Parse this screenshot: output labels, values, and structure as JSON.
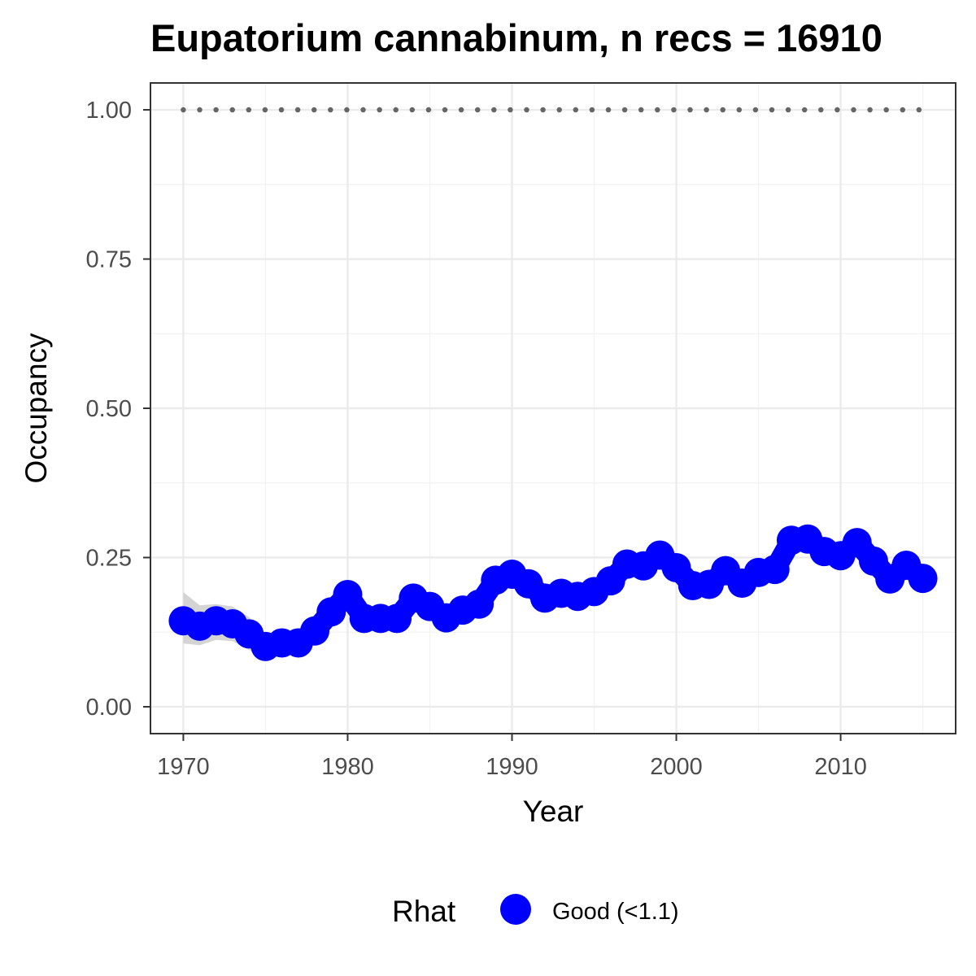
{
  "chart_data": {
    "type": "line",
    "title": "Eupatorium cannabinum, n recs = 16910",
    "xlabel": "Year",
    "ylabel": "Occupancy",
    "xlim": [
      1968,
      2017
    ],
    "ylim": [
      -0.045,
      1.045
    ],
    "x_ticks": [
      1970,
      1980,
      1990,
      2000,
      2010
    ],
    "y_ticks": [
      0,
      0.25,
      0.5,
      0.75,
      1.0
    ],
    "y_tick_labels": [
      "0.00",
      "0.25",
      "0.50",
      "0.75",
      "1.00"
    ],
    "grid": true,
    "legend_position": "bottom",
    "legend": {
      "title": "Rhat",
      "items": [
        {
          "label": "Good (<1.1)",
          "color": "#0000ff"
        }
      ]
    },
    "series": [
      {
        "x": [
          1970,
          1971,
          1972,
          1973,
          1974,
          1975,
          1976,
          1977,
          1978,
          1979,
          1980,
          1981,
          1982,
          1983,
          1984,
          1985,
          1986,
          1987,
          1988,
          1989,
          1990,
          1991,
          1992,
          1993,
          1994,
          1995,
          1996,
          1997,
          1998,
          1999,
          2000,
          2001,
          2002,
          2003,
          2004,
          2005,
          2006,
          2007,
          2008,
          2009,
          2010,
          2011,
          2012,
          2013,
          2014,
          2015
        ],
        "values": [
          0.144,
          0.135,
          0.144,
          0.139,
          0.122,
          0.101,
          0.107,
          0.107,
          0.127,
          0.159,
          0.188,
          0.148,
          0.148,
          0.148,
          0.182,
          0.168,
          0.149,
          0.162,
          0.172,
          0.212,
          0.222,
          0.206,
          0.182,
          0.19,
          0.185,
          0.193,
          0.211,
          0.239,
          0.236,
          0.254,
          0.233,
          0.203,
          0.205,
          0.228,
          0.207,
          0.225,
          0.23,
          0.279,
          0.281,
          0.26,
          0.253,
          0.275,
          0.244,
          0.214,
          0.237,
          0.215
        ],
        "lower": [
          0.106,
          0.103,
          0.112,
          0.11,
          0.095,
          0.082,
          0.089,
          0.09,
          0.11,
          0.142,
          0.168,
          0.134,
          0.134,
          0.135,
          0.166,
          0.152,
          0.137,
          0.149,
          0.158,
          0.197,
          0.208,
          0.193,
          0.17,
          0.178,
          0.174,
          0.181,
          0.198,
          0.225,
          0.222,
          0.24,
          0.22,
          0.19,
          0.193,
          0.215,
          0.195,
          0.212,
          0.217,
          0.264,
          0.267,
          0.246,
          0.24,
          0.261,
          0.231,
          0.2,
          0.222,
          0.2
        ],
        "upper": [
          0.192,
          0.17,
          0.172,
          0.168,
          0.15,
          0.122,
          0.127,
          0.125,
          0.146,
          0.178,
          0.208,
          0.164,
          0.163,
          0.162,
          0.198,
          0.184,
          0.163,
          0.176,
          0.187,
          0.228,
          0.237,
          0.22,
          0.195,
          0.203,
          0.197,
          0.206,
          0.225,
          0.253,
          0.25,
          0.268,
          0.247,
          0.217,
          0.218,
          0.242,
          0.22,
          0.238,
          0.244,
          0.294,
          0.296,
          0.274,
          0.267,
          0.289,
          0.258,
          0.229,
          0.252,
          0.231
        ],
        "color": "#0000ff"
      }
    ],
    "reference_line": {
      "y": 1.0,
      "style": "dotted",
      "color": "#666666"
    },
    "ribbon_color": "#cccccc"
  }
}
